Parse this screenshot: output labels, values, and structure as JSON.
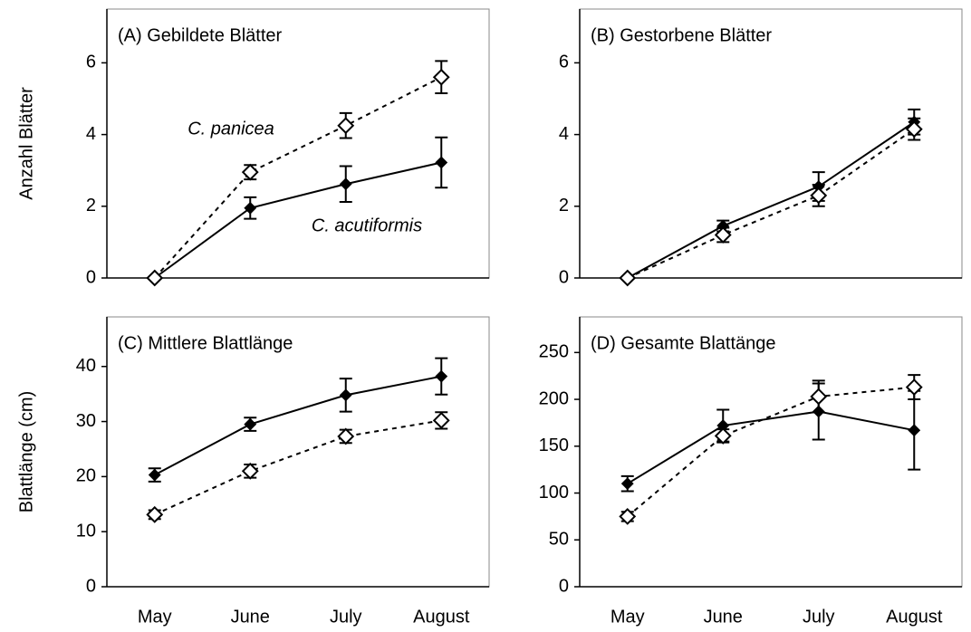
{
  "chart_data": [
    {
      "type": "line",
      "title": "(A)  Gebildete Blätter",
      "ylabel": "Anzahl Blätter",
      "categories": [
        null,
        null,
        null,
        null
      ],
      "ylim": [
        0,
        7.5
      ],
      "yticks": [
        0,
        2,
        4,
        6
      ],
      "annotations": [
        "C. panicea",
        "C. acutiformis"
      ],
      "series": [
        {
          "name": "C. acutiformis",
          "color": "#000000",
          "line_style": "solid",
          "marker": "filled",
          "values": [
            0,
            1.95,
            2.62,
            3.22
          ],
          "errors": [
            0,
            0.3,
            0.5,
            0.7
          ]
        },
        {
          "name": "C. panicea",
          "color": "#000000",
          "line_style": "dashed",
          "marker": "open",
          "values": [
            0,
            2.95,
            4.25,
            5.6
          ],
          "errors": [
            0,
            0.2,
            0.35,
            0.45
          ]
        }
      ]
    },
    {
      "type": "line",
      "title": "(B)  Gestorbene Blätter",
      "categories": [
        null,
        null,
        null,
        null
      ],
      "ylim": [
        0,
        7.5
      ],
      "yticks": [
        0,
        2,
        4,
        6
      ],
      "series": [
        {
          "color": "#000000",
          "line_style": "solid",
          "marker": "filled",
          "values": [
            0,
            1.45,
            2.55,
            4.35
          ],
          "errors": [
            0,
            0.15,
            0.4,
            0.35
          ]
        },
        {
          "color": "#000000",
          "line_style": "dashed",
          "marker": "open",
          "values": [
            0,
            1.2,
            2.3,
            4.15
          ],
          "errors": [
            0,
            0.2,
            0.3,
            0.3
          ]
        }
      ]
    },
    {
      "type": "line",
      "title": "(C)  Mittlere Blattlänge",
      "ylabel": "Blattlänge (cm)",
      "categories": [
        "May",
        "June",
        "July",
        "August"
      ],
      "ylim": [
        0,
        49
      ],
      "yticks": [
        0,
        10,
        20,
        30,
        40
      ],
      "series": [
        {
          "color": "#000000",
          "line_style": "solid",
          "marker": "filled",
          "values": [
            20.3,
            29.5,
            34.8,
            38.2
          ],
          "errors": [
            1.2,
            1.2,
            3,
            3.3
          ]
        },
        {
          "color": "#000000",
          "line_style": "dashed",
          "marker": "open",
          "values": [
            13.1,
            21,
            27.3,
            30.2
          ],
          "errors": [
            0.8,
            1.2,
            1.2,
            1.5
          ]
        }
      ]
    },
    {
      "type": "line",
      "title": "(D) Gesamte Blattänge",
      "categories": [
        "May",
        "June",
        "July",
        "August"
      ],
      "ylim": [
        0,
        288
      ],
      "yticks": [
        0,
        50,
        100,
        150,
        200,
        250
      ],
      "series": [
        {
          "color": "#000000",
          "line_style": "solid",
          "marker": "filled",
          "values": [
            110,
            172,
            187,
            167
          ],
          "errors": [
            8,
            17,
            30,
            42
          ]
        },
        {
          "color": "#000000",
          "line_style": "dashed",
          "marker": "open",
          "values": [
            75,
            161,
            203,
            213
          ],
          "errors": [
            5,
            7,
            17,
            13
          ]
        }
      ]
    }
  ]
}
